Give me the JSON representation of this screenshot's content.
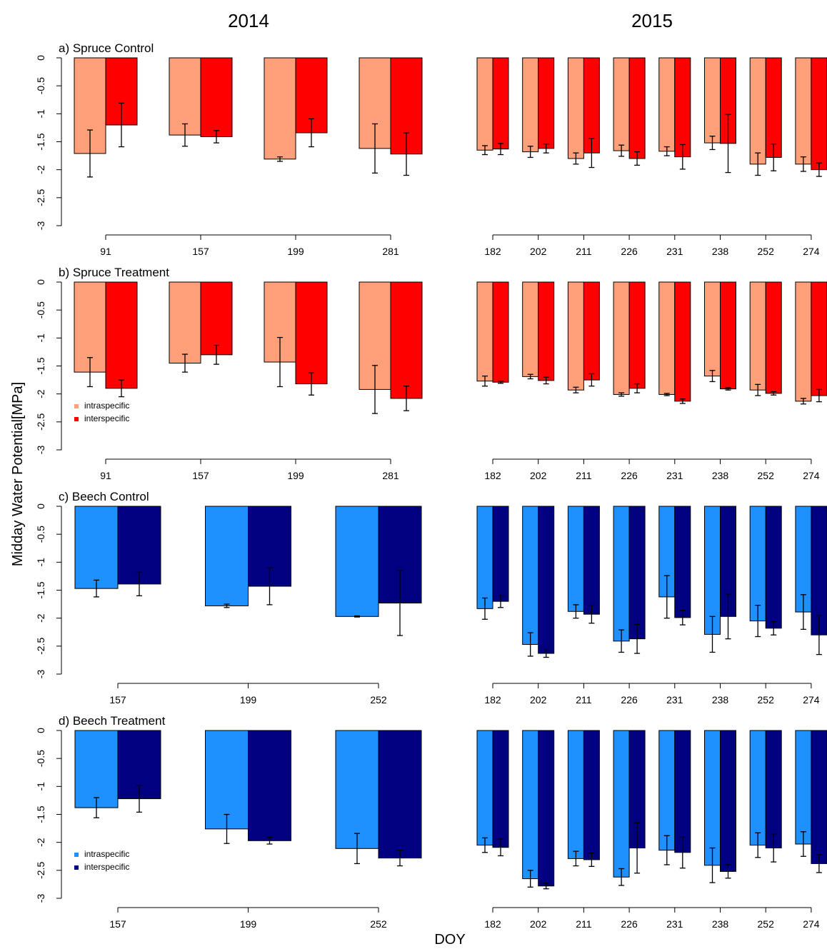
{
  "colors": {
    "spruce_intra": "#FFA07A",
    "spruce_inter": "#FF0000",
    "beech_intra": "#1E90FF",
    "beech_inter": "#000080"
  },
  "labels": {
    "year_left": "2014",
    "year_right": "2015",
    "ylabel": "Midday Water Potential[MPa]",
    "xlabel": "DOY"
  },
  "chart_data": [
    {
      "type": "bar",
      "title": "a) Spruce Control",
      "ylim": [
        -3,
        0
      ],
      "yticks": [
        "0",
        "-0.5",
        "-1",
        "-1.5",
        "-2",
        "-2.5",
        "-3"
      ],
      "legend": null,
      "series_names": [
        "intraspecific",
        "interspecific"
      ],
      "color_keys": [
        "spruce_intra",
        "spruce_inter"
      ],
      "panels": [
        {
          "year": "2014",
          "categories": [
            "91",
            "157",
            "199",
            "281"
          ],
          "series": [
            {
              "name": "intraspecific",
              "values": [
                -1.71,
                -1.38,
                -1.81,
                -1.62
              ],
              "errors": [
                0.42,
                0.2,
                0.04,
                0.44
              ]
            },
            {
              "name": "interspecific",
              "values": [
                -1.2,
                -1.41,
                -1.34,
                -1.72
              ],
              "errors": [
                0.39,
                0.11,
                0.25,
                0.38
              ]
            }
          ]
        },
        {
          "year": "2015",
          "categories": [
            "182",
            "202",
            "211",
            "226",
            "231",
            "238",
            "252",
            "274"
          ],
          "series": [
            {
              "name": "intraspecific",
              "values": [
                -1.65,
                -1.68,
                -1.8,
                -1.66,
                -1.67,
                -1.52,
                -1.9,
                -1.9
              ],
              "errors": [
                0.08,
                0.1,
                0.1,
                0.1,
                0.08,
                0.12,
                0.2,
                0.13
              ]
            },
            {
              "name": "interspecific",
              "values": [
                -1.63,
                -1.62,
                -1.7,
                -1.8,
                -1.77,
                -1.53,
                -1.78,
                -2.0
              ],
              "errors": [
                0.1,
                0.08,
                0.26,
                0.12,
                0.22,
                0.52,
                0.24,
                0.12
              ]
            }
          ]
        }
      ]
    },
    {
      "type": "bar",
      "title": "b) Spruce Treatment",
      "ylim": [
        -3,
        0
      ],
      "yticks": [
        "0",
        "-0.5",
        "-1",
        "-1.5",
        "-2",
        "-2.5",
        "-3"
      ],
      "legend": {
        "position": "bottom-left",
        "entries": [
          "intraspecific",
          "interspecific"
        ]
      },
      "series_names": [
        "intraspecific",
        "interspecific"
      ],
      "color_keys": [
        "spruce_intra",
        "spruce_inter"
      ],
      "panels": [
        {
          "year": "2014",
          "categories": [
            "91",
            "157",
            "199",
            "281"
          ],
          "series": [
            {
              "name": "intraspecific",
              "values": [
                -1.61,
                -1.45,
                -1.43,
                -1.92
              ],
              "errors": [
                0.26,
                0.16,
                0.44,
                0.43
              ]
            },
            {
              "name": "interspecific",
              "values": [
                -1.9,
                -1.3,
                -1.82,
                -2.08
              ],
              "errors": [
                0.15,
                0.17,
                0.2,
                0.22
              ]
            }
          ]
        },
        {
          "year": "2015",
          "categories": [
            "182",
            "202",
            "211",
            "226",
            "231",
            "238",
            "252",
            "274"
          ],
          "series": [
            {
              "name": "intraspecific",
              "values": [
                -1.77,
                -1.69,
                -1.93,
                -2.01,
                -2.01,
                -1.68,
                -1.93,
                -2.13
              ],
              "errors": [
                0.09,
                0.04,
                0.05,
                0.03,
                0.02,
                0.1,
                0.1,
                0.05
              ]
            },
            {
              "name": "interspecific",
              "values": [
                -1.79,
                -1.76,
                -1.75,
                -1.9,
                -2.13,
                -1.91,
                -1.99,
                -2.03
              ],
              "errors": [
                0.02,
                0.06,
                0.11,
                0.08,
                0.04,
                0.02,
                0.03,
                0.11
              ]
            }
          ]
        }
      ]
    },
    {
      "type": "bar",
      "title": "c) Beech Control",
      "ylim": [
        -3,
        0
      ],
      "yticks": [
        "0",
        "-0.5",
        "-1",
        "-1.5",
        "-2",
        "-2.5",
        "-3"
      ],
      "legend": null,
      "series_names": [
        "intraspecific",
        "interspecific"
      ],
      "color_keys": [
        "beech_intra",
        "beech_inter"
      ],
      "panels": [
        {
          "year": "2014",
          "categories": [
            "157",
            "199",
            "252"
          ],
          "series": [
            {
              "name": "intraspecific",
              "values": [
                -1.47,
                -1.78,
                -1.97
              ],
              "errors": [
                0.15,
                0.03,
                0.01
              ]
            },
            {
              "name": "interspecific",
              "values": [
                -1.39,
                -1.43,
                -1.73
              ],
              "errors": [
                0.21,
                0.33,
                0.58
              ]
            }
          ]
        },
        {
          "year": "2015",
          "categories": [
            "182",
            "202",
            "211",
            "226",
            "231",
            "238",
            "252",
            "274"
          ],
          "series": [
            {
              "name": "intraspecific",
              "values": [
                -1.83,
                -2.47,
                -1.88,
                -2.41,
                -1.62,
                -2.29,
                -2.05,
                -1.89
              ],
              "errors": [
                0.19,
                0.21,
                0.12,
                0.2,
                0.38,
                0.32,
                0.28,
                0.31
              ]
            },
            {
              "name": "interspecific",
              "values": [
                -1.7,
                -2.63,
                -1.93,
                -2.37,
                -1.99,
                -1.97,
                -2.18,
                -2.3
              ],
              "errors": [
                0.11,
                0.07,
                0.16,
                0.26,
                0.13,
                0.4,
                0.12,
                0.35
              ]
            }
          ]
        }
      ]
    },
    {
      "type": "bar",
      "title": "d) Beech Treatment",
      "ylim": [
        -3,
        0
      ],
      "yticks": [
        "0",
        "-0.5",
        "-1",
        "-1.5",
        "-2",
        "-2.5",
        "-3"
      ],
      "legend": {
        "position": "bottom-left",
        "entries": [
          "intraspecific",
          "interspecific"
        ]
      },
      "series_names": [
        "intraspecific",
        "interspecific"
      ],
      "color_keys": [
        "beech_intra",
        "beech_inter"
      ],
      "panels": [
        {
          "year": "2014",
          "categories": [
            "157",
            "199",
            "252"
          ],
          "series": [
            {
              "name": "intraspecific",
              "values": [
                -1.38,
                -1.76,
                -2.11
              ],
              "errors": [
                0.18,
                0.26,
                0.27
              ]
            },
            {
              "name": "interspecific",
              "values": [
                -1.22,
                -1.97,
                -2.28
              ],
              "errors": [
                0.24,
                0.06,
                0.14
              ]
            }
          ]
        },
        {
          "year": "2015",
          "categories": [
            "182",
            "202",
            "211",
            "226",
            "231",
            "238",
            "252",
            "274"
          ],
          "series": [
            {
              "name": "intraspecific",
              "values": [
                -2.05,
                -2.65,
                -2.29,
                -2.62,
                -2.14,
                -2.41,
                -2.05,
                -2.03
              ],
              "errors": [
                0.13,
                0.15,
                0.13,
                0.15,
                0.26,
                0.31,
                0.22,
                0.22
              ]
            },
            {
              "name": "interspecific",
              "values": [
                -2.09,
                -2.78,
                -2.31,
                -2.1,
                -2.18,
                -2.52,
                -2.1,
                -2.38
              ],
              "errors": [
                0.15,
                0.05,
                0.12,
                0.45,
                0.28,
                0.12,
                0.25,
                0.16
              ]
            }
          ]
        }
      ]
    }
  ]
}
